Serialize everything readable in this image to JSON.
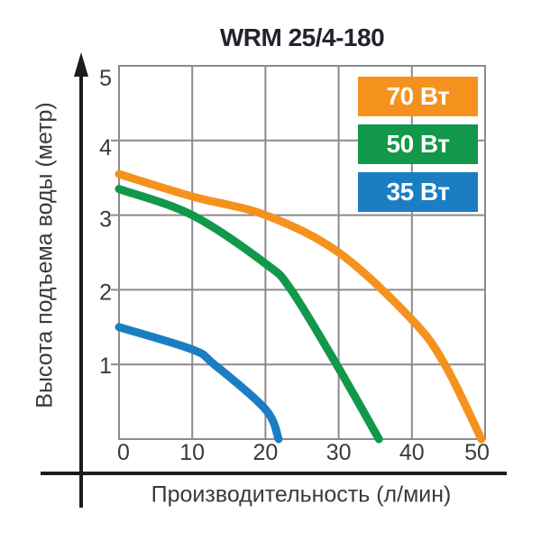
{
  "title": "WRM 25/4-180",
  "chart_data": {
    "type": "line",
    "title": "WRM 25/4-180",
    "xlabel": "Производительность (л/мин)",
    "ylabel": "Высота подъема воды (метр)",
    "xlim": [
      0,
      50
    ],
    "ylim": [
      0,
      5
    ],
    "xticks": [
      0,
      10,
      20,
      30,
      40,
      50
    ],
    "yticks": [
      1,
      2,
      3,
      4,
      5
    ],
    "grid": true,
    "legend_position": "top-right-inside",
    "series": [
      {
        "name": "70 Вт",
        "color": "#F5921E",
        "points": [
          [
            0,
            3.55
          ],
          [
            10,
            3.25
          ],
          [
            20,
            3.0
          ],
          [
            30,
            2.5
          ],
          [
            40,
            1.6
          ],
          [
            44.5,
            1.0
          ],
          [
            49.5,
            0
          ]
        ]
      },
      {
        "name": "50 Вт",
        "color": "#11984A",
        "points": [
          [
            0,
            3.35
          ],
          [
            10,
            3.0
          ],
          [
            20,
            2.35
          ],
          [
            23.5,
            2.0
          ],
          [
            30,
            0.95
          ],
          [
            35.5,
            0
          ]
        ]
      },
      {
        "name": "35 Вт",
        "color": "#1B7EC3",
        "points": [
          [
            0,
            1.5
          ],
          [
            10,
            1.2
          ],
          [
            13,
            1.0
          ],
          [
            20,
            0.4
          ],
          [
            21.8,
            0
          ]
        ]
      }
    ]
  },
  "colors": {
    "grid": "#8B8B8D",
    "axis": "#1C1C1C",
    "tick_text": "#3A3A38",
    "title_text": "#23232E",
    "background": "#FFFFFF"
  }
}
